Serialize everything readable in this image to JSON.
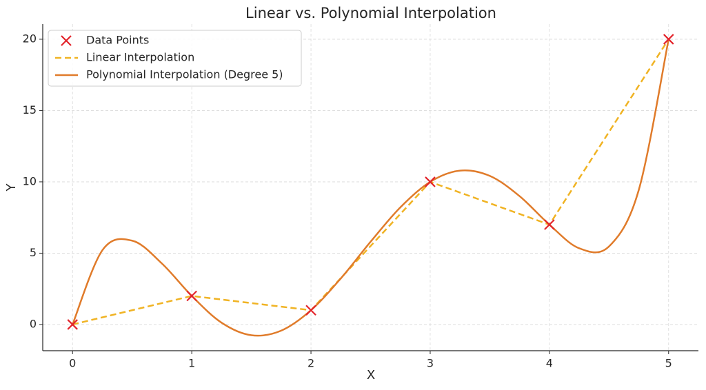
{
  "chart_data": {
    "type": "line",
    "title": "Linear vs. Polynomial Interpolation",
    "x_label": "X",
    "y_label": "Y",
    "xlim": [
      -0.25,
      5.25
    ],
    "ylim": [
      -1.84,
      21.06
    ],
    "xticks": [
      0,
      1,
      2,
      3,
      4,
      5
    ],
    "yticks": [
      0,
      5,
      10,
      15,
      20
    ],
    "grid": true,
    "legend": "upper left",
    "series": [
      {
        "name": "Data Points",
        "type": "scatter",
        "color": "#e3242b",
        "x": [
          0,
          1,
          2,
          3,
          4,
          5
        ],
        "values": [
          0,
          2,
          1,
          10,
          7,
          20
        ]
      },
      {
        "name": "Linear Interpolation",
        "type": "line",
        "dashed": true,
        "color": "#f0b323",
        "x": [
          0,
          1,
          2,
          3,
          4,
          5
        ],
        "values": [
          0,
          2,
          1,
          10,
          7,
          20
        ]
      },
      {
        "name": "Polynomial Interpolation (Degree 5)",
        "type": "line",
        "smooth": true,
        "color": "#e07b2a",
        "x": [
          0,
          0.25,
          0.5,
          0.75,
          1,
          1.25,
          1.5,
          1.75,
          2,
          2.25,
          2.5,
          2.75,
          3,
          3.25,
          3.5,
          3.75,
          4,
          4.25,
          4.5,
          4.75,
          5
        ],
        "values": [
          0,
          5.205,
          5.879,
          4.272,
          2,
          0.126,
          -0.754,
          -0.432,
          1,
          3.227,
          5.801,
          8.216,
          10,
          10.789,
          10.418,
          8.997,
          7,
          5.344,
          5.473,
          9.442,
          20
        ]
      }
    ]
  }
}
